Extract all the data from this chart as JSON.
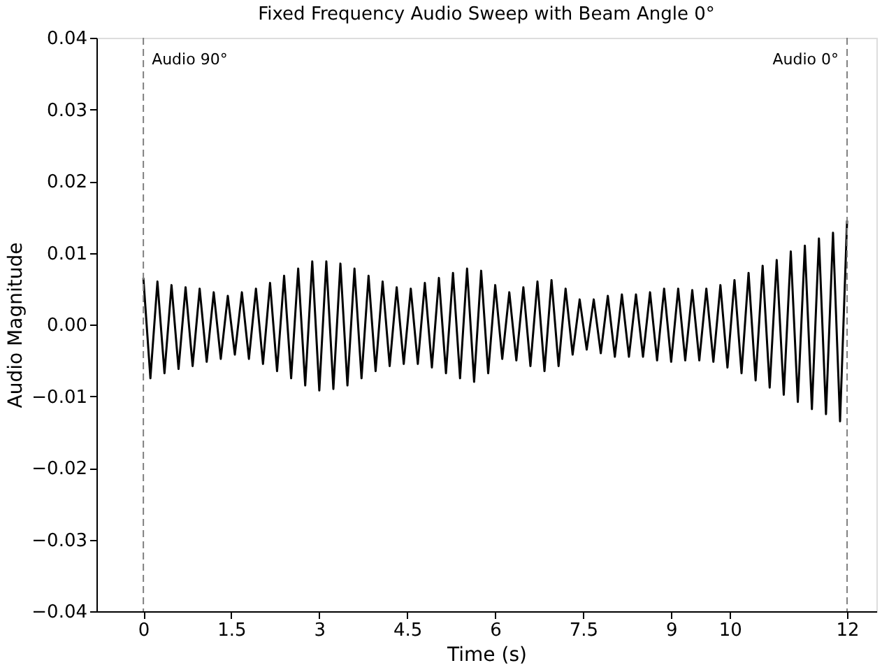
{
  "chart_data": {
    "type": "line",
    "title": "Fixed Frequency Audio Sweep with Beam Angle 0°",
    "xlabel": "Time (s)",
    "ylabel": "Audio Magnitude",
    "x": [
      0.0,
      0.12,
      0.24,
      0.36,
      0.48,
      0.6,
      0.72,
      0.84,
      0.96,
      1.08,
      1.2,
      1.32,
      1.44,
      1.56,
      1.68,
      1.8,
      1.92,
      2.04,
      2.16,
      2.28,
      2.4,
      2.52,
      2.64,
      2.76,
      2.88,
      3.0,
      3.12,
      3.24,
      3.36,
      3.48,
      3.6,
      3.72,
      3.84,
      3.96,
      4.08,
      4.2,
      4.32,
      4.44,
      4.56,
      4.68,
      4.8,
      4.92,
      5.04,
      5.16,
      5.28,
      5.4,
      5.52,
      5.64,
      5.76,
      5.88,
      6.0,
      6.12,
      6.24,
      6.36,
      6.48,
      6.6,
      6.72,
      6.84,
      6.96,
      7.08,
      7.2,
      7.32,
      7.44,
      7.56,
      7.68,
      7.8,
      7.92,
      8.04,
      8.16,
      8.28,
      8.4,
      8.52,
      8.64,
      8.76,
      8.88,
      9.0,
      9.12,
      9.24,
      9.36,
      9.48,
      9.6,
      9.72,
      9.84,
      9.96,
      10.08,
      10.2,
      10.32,
      10.44,
      10.56,
      10.68,
      10.8,
      10.92,
      11.04,
      11.16,
      11.28,
      11.4,
      11.52,
      11.64,
      11.76,
      11.88,
      12.0
    ],
    "series": [
      {
        "color": "#000000",
        "values": [
          0.0065,
          -0.0075,
          0.006,
          -0.0068,
          0.0055,
          -0.0062,
          0.0052,
          -0.0058,
          0.005,
          -0.0052,
          0.0045,
          -0.0048,
          0.004,
          -0.0042,
          0.0045,
          -0.0048,
          0.005,
          -0.0055,
          0.0058,
          -0.0065,
          0.0068,
          -0.0075,
          0.0078,
          -0.0085,
          0.0088,
          -0.0092,
          0.0088,
          -0.009,
          0.0085,
          -0.0085,
          0.0078,
          -0.0075,
          0.0068,
          -0.0065,
          0.006,
          -0.0058,
          0.0052,
          -0.0055,
          0.005,
          -0.0055,
          0.0058,
          -0.006,
          0.0065,
          -0.0068,
          0.0072,
          -0.0075,
          0.0078,
          -0.008,
          0.0075,
          -0.0068,
          0.0055,
          -0.0048,
          0.0045,
          -0.005,
          0.0052,
          -0.0058,
          0.006,
          -0.0065,
          0.0062,
          -0.0058,
          0.005,
          -0.0042,
          0.0035,
          -0.0035,
          0.0035,
          -0.004,
          0.004,
          -0.0045,
          0.0042,
          -0.0045,
          0.0042,
          -0.0045,
          0.0045,
          -0.005,
          0.005,
          -0.0052,
          0.005,
          -0.005,
          0.0048,
          -0.005,
          0.005,
          -0.0052,
          0.0055,
          -0.006,
          0.0062,
          -0.0068,
          0.0072,
          -0.0078,
          0.0082,
          -0.0088,
          0.009,
          -0.0098,
          0.0102,
          -0.0108,
          0.011,
          -0.0118,
          0.012,
          -0.0125,
          0.0128,
          -0.0135,
          0.0145
        ]
      }
    ],
    "xlim": [
      -0.8,
      12.5
    ],
    "xticks": [
      0,
      1.5,
      3,
      4.5,
      6,
      7.5,
      9,
      10,
      12
    ],
    "ylim": [
      -0.04,
      0.04
    ],
    "yticks": [
      {
        "value": -0.04,
        "label": "−0.04"
      },
      {
        "value": -0.03,
        "label": "−0.03"
      },
      {
        "value": -0.02,
        "label": "−0.02"
      },
      {
        "value": -0.01,
        "label": "−0.01"
      },
      {
        "value": 0,
        "label": "0.00"
      },
      {
        "value": 0.01,
        "label": "0.01"
      },
      {
        "value": 0.02,
        "label": "0.02"
      },
      {
        "value": 0.03,
        "label": "0.03"
      },
      {
        "value": 0.04,
        "label": "0.04"
      }
    ],
    "ref_lines": [
      {
        "axis": "x",
        "value": 0,
        "label": "Audio 90°",
        "color": "#808080",
        "line_style": "dashed"
      },
      {
        "axis": "x",
        "value": 12,
        "label": "Audio 0°",
        "color": "#808080",
        "line_style": "dashed"
      }
    ],
    "grid": false,
    "line_style": "solid"
  }
}
